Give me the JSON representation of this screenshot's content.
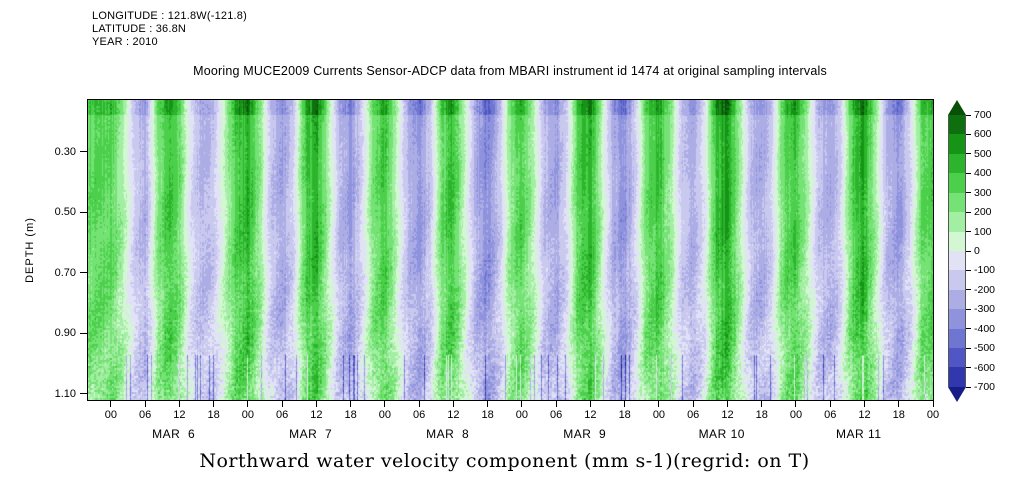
{
  "meta": {
    "longitude": "LONGITUDE : 121.8W(-121.8)",
    "latitude": "LATITUDE : 36.8N",
    "year": "YEAR : 2010"
  },
  "title": "Mooring MUCE2009 Currents Sensor-ADCP data from MBARI instrument id 1474 at original sampling intervals",
  "caption": "Northward water velocity component (mm s-1)(regrid: on T)",
  "chart_data": {
    "type": "heatmap",
    "title": "Mooring MUCE2009 Currents Sensor-ADCP data from MBARI instrument id 1474 at original sampling intervals",
    "ylabel": "DEPTH (m)",
    "y_ticks": [
      0.3,
      0.5,
      0.7,
      0.9,
      1.1
    ],
    "y_tick_labels": [
      "0.30",
      "0.50",
      "0.70",
      "0.90",
      "1.10"
    ],
    "y_range_m": [
      0.13,
      1.12
    ],
    "x_range_hours": [
      -4,
      144
    ],
    "x_hour_tick_step": 6,
    "x_hour_tick_labels_cycle": [
      "00",
      "06",
      "12",
      "18"
    ],
    "x_day_labels": [
      "MAR  6",
      "MAR  7",
      "MAR  8",
      "MAR  9",
      "MAR 10",
      "MAR 11"
    ],
    "colorbar_ticks": [
      700,
      600,
      500,
      400,
      300,
      200,
      100,
      0,
      -100,
      -200,
      -300,
      -400,
      -500,
      -600,
      -700
    ],
    "units": "mm s-1",
    "legend_position": "right",
    "grid": false,
    "palette_pos": [
      "#d2f7d2",
      "#a2eea2",
      "#74e274",
      "#4cd04c",
      "#2cb42c",
      "#169416",
      "#0e6f0e",
      "#084f08"
    ],
    "palette_neg": [
      "#e2e2f7",
      "#c9c9ef",
      "#adade6",
      "#8f93dd",
      "#6f76d2",
      "#5057c4",
      "#3138ae",
      "#161d86"
    ],
    "series_step_hours": 2,
    "surface_velocity_series_2h_mm_s": [
      320,
      150,
      -120,
      -260,
      180,
      420,
      260,
      -80,
      -240,
      -150,
      100,
      380,
      450,
      200,
      -180,
      -300,
      -120,
      350,
      500,
      150,
      -200,
      -320,
      -100,
      250,
      400,
      100,
      -220,
      -350,
      -150,
      300,
      420,
      80,
      -260,
      -380,
      -180,
      200,
      350,
      120,
      -200,
      -300,
      -80,
      380,
      450,
      100,
      -250,
      -350,
      -120,
      300,
      420,
      180,
      -150,
      -280,
      -60,
      400,
      550,
      200,
      -180,
      -300,
      -90,
      320,
      380,
      140,
      -170,
      -290,
      -100,
      360,
      480,
      160,
      -220,
      -340,
      -140,
      280,
      350
    ]
  }
}
